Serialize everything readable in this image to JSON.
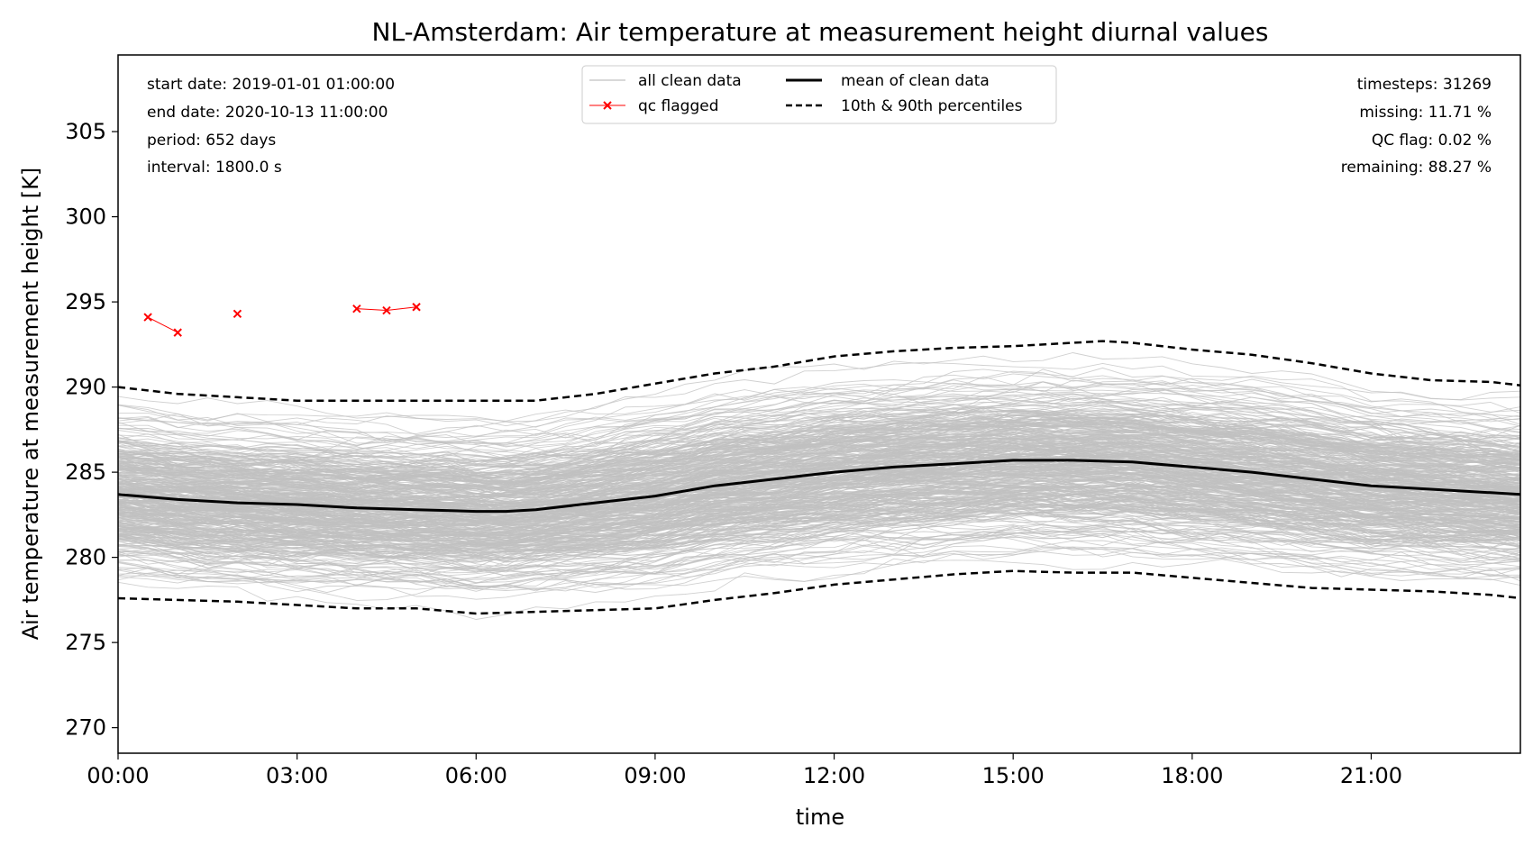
{
  "chart_data": {
    "type": "line",
    "title": "NL-Amsterdam: Air temperature at measurement height diurnal values",
    "xlabel": "time",
    "ylabel": "Air temperature at measurement height [K]",
    "ylim": [
      268.5,
      309.5
    ],
    "xlim": [
      0,
      23.5
    ],
    "xticks": [
      0,
      3,
      6,
      9,
      12,
      15,
      18,
      21
    ],
    "xtick_labels": [
      "00:00",
      "03:00",
      "06:00",
      "09:00",
      "12:00",
      "15:00",
      "18:00",
      "21:00"
    ],
    "yticks": [
      270,
      275,
      280,
      285,
      290,
      295,
      300,
      305
    ],
    "ytick_labels": [
      "270",
      "275",
      "280",
      "285",
      "290",
      "295",
      "300",
      "305"
    ],
    "grid": false,
    "legend_placement": "top-center",
    "legend": [
      {
        "label": "all clean data",
        "style": "thin-gray"
      },
      {
        "label": "qc flagged",
        "style": "red-x"
      },
      {
        "label": "mean of clean data",
        "style": "solid-black"
      },
      {
        "label": "10th & 90th percentiles",
        "style": "dashed-black"
      }
    ],
    "colors": {
      "clean": "#c0c0c0",
      "flagged": "#ff0000",
      "stats": "#000000"
    },
    "annotations_left": [
      "start date: 2019-01-01 01:00:00",
      "end date: 2020-10-13 11:00:00",
      "period: 652 days",
      "interval: 1800.0 s"
    ],
    "annotations_right": [
      "timesteps: 31269",
      "missing: 11.71 %",
      "QC flag: 0.02 %",
      "remaining: 88.27 %"
    ],
    "series": [
      {
        "name": "mean of clean data",
        "x": [
          0,
          1,
          2,
          3,
          4,
          5,
          6,
          6.5,
          7,
          8,
          9,
          10,
          11,
          12,
          13,
          14,
          15,
          16,
          17,
          18,
          19,
          20,
          21,
          22,
          23,
          23.5
        ],
        "y": [
          283.7,
          283.4,
          283.2,
          283.1,
          282.9,
          282.8,
          282.7,
          282.7,
          282.8,
          283.2,
          283.6,
          284.2,
          284.6,
          285.0,
          285.3,
          285.5,
          285.7,
          285.7,
          285.6,
          285.3,
          285.0,
          284.6,
          284.2,
          284.0,
          283.8,
          283.7
        ]
      },
      {
        "name": "10th percentile",
        "x": [
          0,
          1,
          2,
          3,
          4,
          5,
          6,
          7,
          8,
          9,
          10,
          11,
          12,
          13,
          14,
          15,
          16,
          17,
          18,
          19,
          20,
          21,
          22,
          23,
          23.5
        ],
        "y": [
          277.6,
          277.5,
          277.4,
          277.2,
          277.0,
          277.0,
          276.7,
          276.8,
          276.9,
          277.0,
          277.5,
          277.9,
          278.4,
          278.7,
          279.0,
          279.2,
          279.1,
          279.1,
          278.8,
          278.5,
          278.2,
          278.1,
          278.0,
          277.8,
          277.6
        ]
      },
      {
        "name": "90th percentile",
        "x": [
          0,
          1,
          2,
          3,
          4,
          5,
          6,
          7,
          8,
          9,
          10,
          11,
          12,
          13,
          14,
          15,
          16,
          16.5,
          17,
          18,
          19,
          20,
          21,
          22,
          23,
          23.5
        ],
        "y": [
          290.0,
          289.6,
          289.4,
          289.2,
          289.2,
          289.2,
          289.2,
          289.2,
          289.6,
          290.2,
          290.8,
          291.2,
          291.8,
          292.1,
          292.3,
          292.4,
          292.6,
          292.7,
          292.6,
          292.2,
          291.9,
          291.4,
          290.8,
          290.4,
          290.3,
          290.1
        ]
      },
      {
        "name": "qc flagged",
        "x": [
          0.5,
          1.0,
          2.0,
          4.0,
          4.5,
          5.0
        ],
        "y": [
          294.1,
          293.2,
          294.3,
          294.6,
          294.5,
          294.7
        ]
      }
    ]
  }
}
